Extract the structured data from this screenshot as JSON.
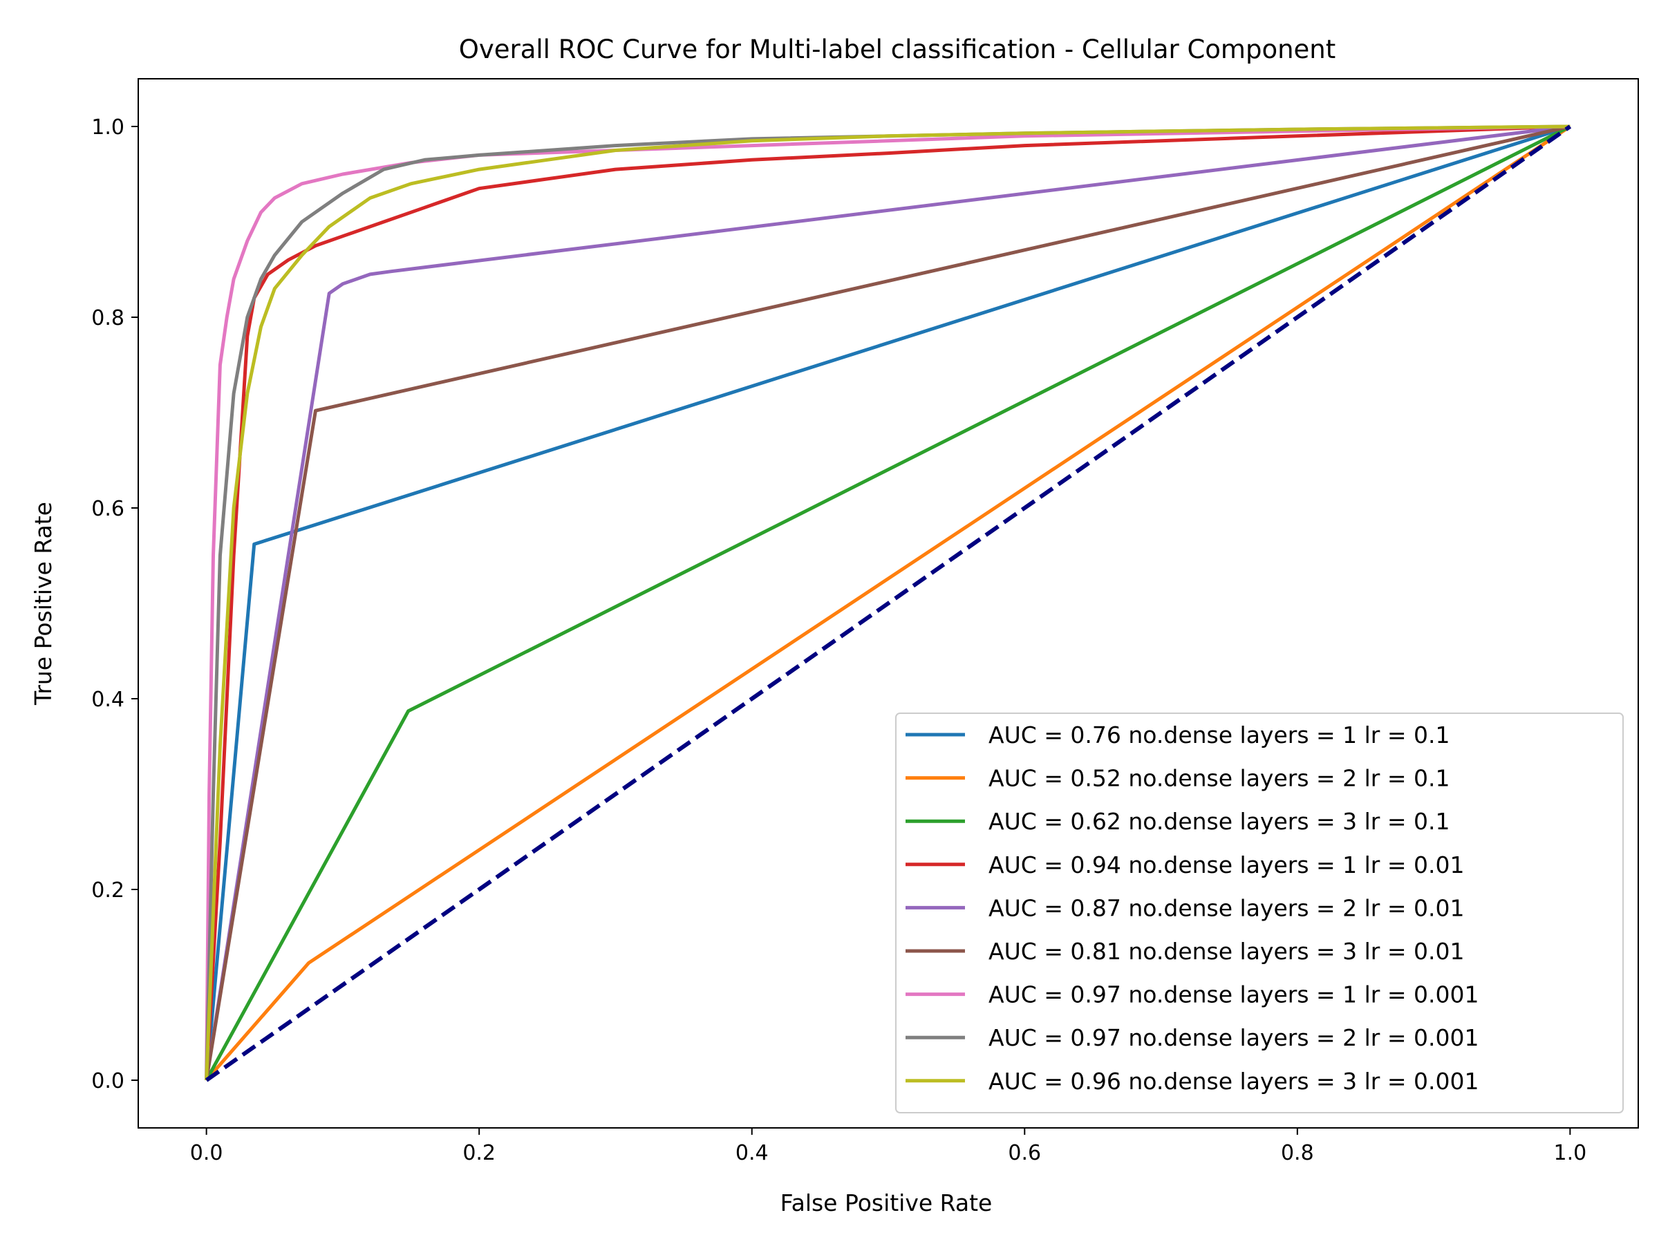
{
  "chart_data": {
    "type": "line",
    "title": "Overall ROC Curve for Multi-label classification - Cellular Component",
    "xlabel": "False Positive Rate",
    "ylabel": "True Positive Rate",
    "xlim": [
      -0.05,
      1.05
    ],
    "ylim": [
      -0.05,
      1.05
    ],
    "xticks": [
      "0.0",
      "0.2",
      "0.4",
      "0.6",
      "0.8",
      "1.0"
    ],
    "yticks": [
      "0.0",
      "0.2",
      "0.4",
      "0.6",
      "0.8",
      "1.0"
    ],
    "legend_position": "lower-right",
    "grid": false,
    "diagonal": {
      "color": "#000080",
      "style": "dashed",
      "x": [
        0,
        1
      ],
      "y": [
        0,
        1
      ]
    },
    "series": [
      {
        "name": "AUC = 0.76 no.dense layers = 1 lr = 0.1",
        "color": "#1f77b4",
        "x": [
          0,
          0.035,
          1.0
        ],
        "y": [
          0,
          0.562,
          1.0
        ]
      },
      {
        "name": "AUC = 0.52 no.dense layers = 2 lr = 0.1",
        "color": "#ff7f0e",
        "x": [
          0,
          0.075,
          1.0
        ],
        "y": [
          0,
          0.123,
          1.0
        ]
      },
      {
        "name": "AUC = 0.62 no.dense layers = 3 lr = 0.1",
        "color": "#2ca02c",
        "x": [
          0,
          0.148,
          1.0
        ],
        "y": [
          0,
          0.387,
          1.0
        ]
      },
      {
        "name": "AUC = 0.94 no.dense layers = 1 lr = 0.01",
        "color": "#d62728",
        "x": [
          0,
          0.01,
          0.02,
          0.03,
          0.035,
          0.045,
          0.06,
          0.08,
          0.1,
          0.13,
          0.16,
          0.2,
          0.25,
          0.3,
          0.4,
          0.5,
          0.6,
          0.8,
          1.0
        ],
        "y": [
          0,
          0.25,
          0.55,
          0.78,
          0.82,
          0.845,
          0.86,
          0.875,
          0.885,
          0.9,
          0.915,
          0.935,
          0.945,
          0.955,
          0.965,
          0.972,
          0.98,
          0.99,
          1.0
        ]
      },
      {
        "name": "AUC = 0.87 no.dense layers = 2 lr = 0.01",
        "color": "#9467bd",
        "x": [
          0,
          0.09,
          0.1,
          0.12,
          0.135,
          1.0
        ],
        "y": [
          0,
          0.825,
          0.835,
          0.845,
          0.848,
          1.0
        ]
      },
      {
        "name": "AUC = 0.81 no.dense layers = 3 lr = 0.01",
        "color": "#8c564b",
        "x": [
          0,
          0.08,
          1.0
        ],
        "y": [
          0,
          0.702,
          1.0
        ]
      },
      {
        "name": "AUC = 0.97 no.dense layers = 1 lr = 0.001",
        "color": "#e377c2",
        "x": [
          0,
          0.002,
          0.005,
          0.01,
          0.015,
          0.02,
          0.03,
          0.04,
          0.05,
          0.07,
          0.1,
          0.15,
          0.2,
          0.3,
          0.4,
          0.6,
          0.8,
          1.0
        ],
        "y": [
          0,
          0.3,
          0.55,
          0.75,
          0.8,
          0.84,
          0.88,
          0.91,
          0.925,
          0.94,
          0.95,
          0.962,
          0.97,
          0.975,
          0.98,
          0.99,
          0.995,
          1.0
        ]
      },
      {
        "name": "AUC = 0.97 no.dense layers = 2 lr = 0.001",
        "color": "#7f7f7f",
        "x": [
          0,
          0.005,
          0.01,
          0.02,
          0.03,
          0.04,
          0.05,
          0.07,
          0.1,
          0.13,
          0.16,
          0.2,
          0.3,
          0.4,
          0.6,
          0.8,
          1.0
        ],
        "y": [
          0,
          0.3,
          0.55,
          0.72,
          0.8,
          0.84,
          0.865,
          0.9,
          0.93,
          0.955,
          0.965,
          0.97,
          0.98,
          0.987,
          0.993,
          0.997,
          1.0
        ]
      },
      {
        "name": "AUC = 0.96 no.dense layers = 3 lr = 0.001",
        "color": "#bcbd22",
        "x": [
          0,
          0.01,
          0.02,
          0.03,
          0.04,
          0.05,
          0.07,
          0.09,
          0.12,
          0.15,
          0.2,
          0.25,
          0.3,
          0.4,
          0.5,
          0.6,
          0.8,
          1.0
        ],
        "y": [
          0,
          0.35,
          0.6,
          0.72,
          0.79,
          0.83,
          0.865,
          0.895,
          0.925,
          0.94,
          0.955,
          0.965,
          0.975,
          0.985,
          0.99,
          0.993,
          0.997,
          1.0
        ]
      }
    ]
  }
}
